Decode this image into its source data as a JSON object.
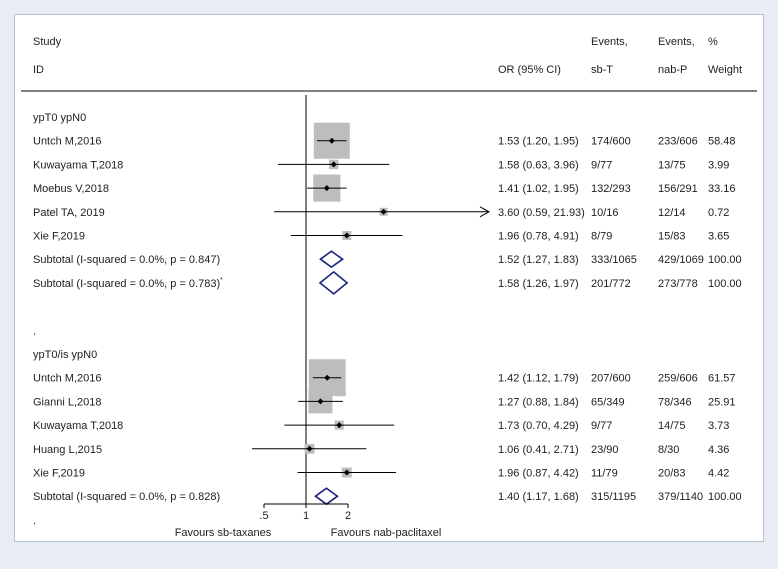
{
  "header": {
    "study": "Study",
    "id": "ID",
    "or_label": "OR (95% CI)",
    "events_label": "Events,",
    "sbt_label": "sb-T",
    "nabp_label": "nab-P",
    "pct_label": "%",
    "weight_label": "Weight"
  },
  "chart_data": {
    "type": "forest",
    "x_scale": "log",
    "null_line": 1,
    "xticks": [
      {
        "value": 0.5,
        "label": ".5"
      },
      {
        "value": 1,
        "label": "1"
      },
      {
        "value": 2,
        "label": "2"
      }
    ],
    "favours_left": "Favours sb-taxanes",
    "favours_right": "Favours nab-paclitaxel",
    "colors": {
      "box": "#bdbdbd",
      "diamond": "#1a237e",
      "line": "#000000"
    },
    "rows": [
      {
        "kind": "group",
        "label": "ypT0 ypN0"
      },
      {
        "kind": "study",
        "label": "Untch M,2016",
        "or": 1.53,
        "lo": 1.2,
        "hi": 1.95,
        "ci_text": "1.53 (1.20, 1.95)",
        "ev_sbt": "174/600",
        "ev_nabp": "233/606",
        "weight": "58.48"
      },
      {
        "kind": "study",
        "label": "Kuwayama T,2018",
        "or": 1.58,
        "lo": 0.63,
        "hi": 3.96,
        "ci_text": "1.58 (0.63, 3.96)",
        "ev_sbt": "9/77",
        "ev_nabp": "13/75",
        "weight": "3.99"
      },
      {
        "kind": "study",
        "label": "Moebus V,2018",
        "or": 1.41,
        "lo": 1.02,
        "hi": 1.95,
        "ci_text": "1.41 (1.02, 1.95)",
        "ev_sbt": "132/293",
        "ev_nabp": "156/291",
        "weight": "33.16"
      },
      {
        "kind": "study",
        "label": "Patel TA, 2019",
        "or": 3.6,
        "lo": 0.59,
        "hi": 21.93,
        "ci_text": "3.60 (0.59, 21.93)",
        "ev_sbt": "10/16",
        "ev_nabp": "12/14",
        "weight": "0.72"
      },
      {
        "kind": "study",
        "label": "Xie F,2019",
        "or": 1.96,
        "lo": 0.78,
        "hi": 4.91,
        "ci_text": "1.96 (0.78, 4.91)",
        "ev_sbt": "8/79",
        "ev_nabp": "15/83",
        "weight": "3.65"
      },
      {
        "kind": "subtotal",
        "label": "Subtotal  (I-squared = 0.0%, p = 0.847)",
        "or": 1.52,
        "lo": 1.27,
        "hi": 1.83,
        "ci_text": "1.52 (1.27, 1.83)",
        "ev_sbt": "333/1065",
        "ev_nabp": "429/1069",
        "weight": "100.00"
      },
      {
        "kind": "subtotal",
        "label": "Subtotal  (I-squared = 0.0%, p = 0.783)",
        "sup": "*",
        "or": 1.58,
        "lo": 1.26,
        "hi": 1.97,
        "ci_text": "1.58 (1.26, 1.97)",
        "ev_sbt": "201/772",
        "ev_nabp": "273/778",
        "weight": "100.00"
      },
      {
        "kind": "spacer",
        "label": ""
      },
      {
        "kind": "dot",
        "label": "."
      },
      {
        "kind": "group",
        "label": "ypT0/is ypN0"
      },
      {
        "kind": "study",
        "label": "Untch M,2016",
        "or": 1.42,
        "lo": 1.12,
        "hi": 1.79,
        "ci_text": "1.42 (1.12, 1.79)",
        "ev_sbt": "207/600",
        "ev_nabp": "259/606",
        "weight": "61.57"
      },
      {
        "kind": "study",
        "label": "Gianni L,2018",
        "or": 1.27,
        "lo": 0.88,
        "hi": 1.84,
        "ci_text": "1.27 (0.88, 1.84)",
        "ev_sbt": "65/349",
        "ev_nabp": "78/346",
        "weight": "25.91"
      },
      {
        "kind": "study",
        "label": "Kuwayama T,2018",
        "or": 1.73,
        "lo": 0.7,
        "hi": 4.29,
        "ci_text": "1.73 (0.70, 4.29)",
        "ev_sbt": "9/77",
        "ev_nabp": "14/75",
        "weight": "3.73"
      },
      {
        "kind": "study",
        "label": "Huang L,2015",
        "or": 1.06,
        "lo": 0.41,
        "hi": 2.71,
        "ci_text": "1.06 (0.41, 2.71)",
        "ev_sbt": "23/90",
        "ev_nabp": "8/30",
        "weight": "4.36"
      },
      {
        "kind": "study",
        "label": "Xie F,2019",
        "or": 1.96,
        "lo": 0.87,
        "hi": 4.42,
        "ci_text": "1.96 (0.87, 4.42)",
        "ev_sbt": "11/79",
        "ev_nabp": "20/83",
        "weight": "4.42"
      },
      {
        "kind": "subtotal",
        "label": "Subtotal  (I-squared = 0.0%, p = 0.828)",
        "or": 1.4,
        "lo": 1.17,
        "hi": 1.68,
        "ci_text": "1.40 (1.17, 1.68)",
        "ev_sbt": "315/1195",
        "ev_nabp": "379/1140",
        "weight": "100.00"
      },
      {
        "kind": "dot",
        "label": "."
      }
    ]
  }
}
